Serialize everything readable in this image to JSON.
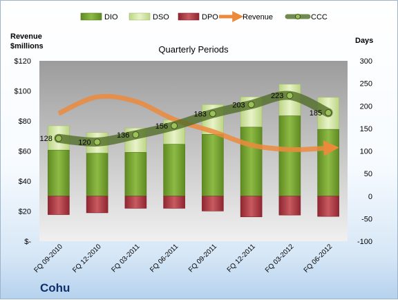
{
  "company": "Cohu",
  "chart_data": {
    "type": "bar",
    "title": "Quarterly Periods",
    "categories": [
      "FQ 09-2010",
      "FQ 12-2010",
      "FQ 03-2011",
      "FQ 06-2011",
      "FQ 09-2011",
      "FQ 12-2011",
      "FQ 03-2012",
      "FQ 06-2012"
    ],
    "left_axis": {
      "title_line1": "Revenue",
      "title_line2": "$millions",
      "ticks": [
        "$120",
        "$100",
        "$80",
        "$60",
        "$40",
        "$20",
        "$-"
      ],
      "ylim": [
        0,
        120
      ]
    },
    "right_axis": {
      "title": "Days",
      "ticks": [
        "300",
        "250",
        "200",
        "150",
        "100",
        "50",
        "0",
        "-50",
        "-100"
      ],
      "ylim": [
        -100,
        300
      ]
    },
    "legend": [
      "DIO",
      "DSO",
      "DPO",
      "Revenue",
      "CCC"
    ],
    "legend_position": "top",
    "grid": false,
    "series": [
      {
        "name": "DIO",
        "axis": "right",
        "values": [
          102,
          95,
          97,
          115,
          137,
          153,
          178,
          148
        ],
        "color": "#7ca83a"
      },
      {
        "name": "DSO",
        "axis": "right",
        "values": [
          54,
          46,
          54,
          54,
          66,
          67,
          70,
          71
        ],
        "color": "#d4e6a8"
      },
      {
        "name": "DPO",
        "axis": "right",
        "values": [
          -41,
          -37,
          -27,
          -27,
          -33,
          -46,
          -42,
          -45
        ],
        "color": "#b8414a"
      },
      {
        "name": "Revenue",
        "axis": "left",
        "values": [
          85,
          96,
          93,
          81,
          73,
          64,
          61,
          62
        ],
        "color": "#e8823a"
      },
      {
        "name": "CCC",
        "axis": "right",
        "values": [
          128,
          120,
          136,
          156,
          183,
          203,
          223,
          185
        ],
        "labels": [
          "128",
          "120",
          "136",
          "156",
          "183",
          "203",
          "223",
          "185"
        ],
        "color": "#5e7a30"
      }
    ]
  }
}
